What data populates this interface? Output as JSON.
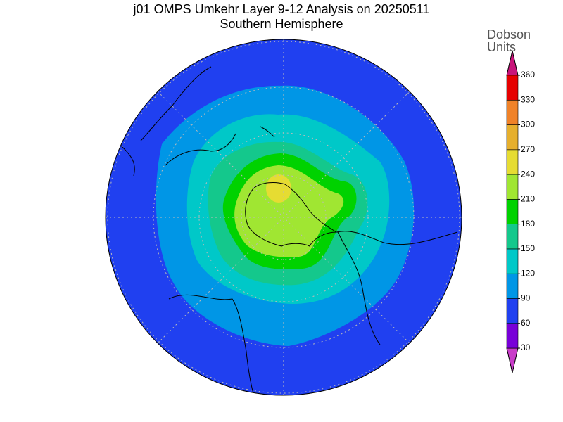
{
  "title": "j01 OMPS Umkehr Layer 9-12 Analysis on 20250511",
  "subtitle": "Southern Hemisphere",
  "legend": {
    "title_lines": [
      "Dobson",
      "Units"
    ],
    "range": [
      30,
      360
    ],
    "ticks": [
      30,
      60,
      90,
      120,
      150,
      180,
      210,
      240,
      270,
      300,
      330,
      360
    ],
    "colors": [
      "#c83cc8",
      "#7800d8",
      "#2040f0",
      "#0096e6",
      "#00c8c8",
      "#14c88c",
      "#00d200",
      "#a0e632",
      "#e6dc32",
      "#e6af2d",
      "#f08228",
      "#e60000",
      "#c8147a"
    ]
  }
}
